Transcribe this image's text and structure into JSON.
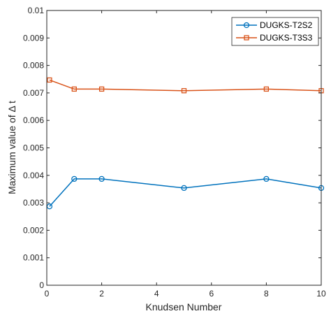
{
  "chart_data": {
    "type": "line",
    "title": "",
    "xlabel": "Knudsen Number",
    "ylabel": "Maximum value of  Δ t",
    "xlim": [
      0,
      10
    ],
    "ylim": [
      0,
      0.01
    ],
    "xticks": [
      "0",
      "2",
      "4",
      "6",
      "8",
      "10"
    ],
    "yticks": [
      "0",
      "0.001",
      "0.002",
      "0.003",
      "0.004",
      "0.005",
      "0.006",
      "0.007",
      "0.008",
      "0.009",
      "0.01"
    ],
    "grid": false,
    "legend_position": "top-right",
    "series": [
      {
        "name": "DUGKS-T2S2",
        "color": "#0072BD",
        "marker": "circle",
        "x": [
          0.1,
          1,
          2,
          5,
          8,
          10
        ],
        "y": [
          0.00287,
          0.00387,
          0.00387,
          0.00354,
          0.00387,
          0.00354
        ]
      },
      {
        "name": "DUGKS-T3S3",
        "color": "#D95319",
        "marker": "square",
        "x": [
          0.1,
          1,
          2,
          5,
          8,
          10
        ],
        "y": [
          0.00747,
          0.00714,
          0.00714,
          0.00708,
          0.00714,
          0.00708
        ]
      }
    ]
  }
}
